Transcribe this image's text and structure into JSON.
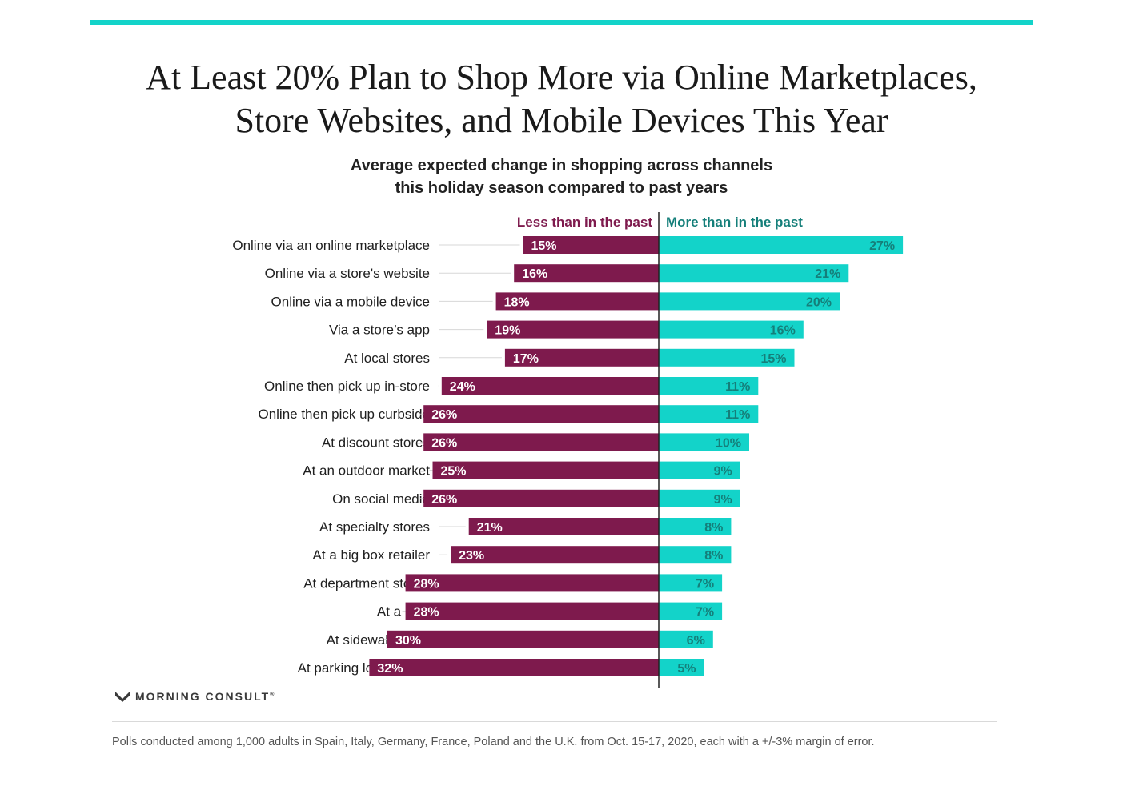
{
  "colors": {
    "accent_teal": "#13D3C9",
    "less_color": "#7E1A4D",
    "more_color": "#13D3C9",
    "more_label_color": "#157F7A",
    "less_label_color": "#ffffff",
    "axis_color": "#222222",
    "leader_color": "#d7d7d7"
  },
  "title": {
    "line1": "At Least 20% Plan to Shop More via Online Marketplaces,",
    "line2": "Store Websites, and Mobile Devices This Year"
  },
  "subtitle": {
    "line1": "Average expected change in shopping across channels",
    "line2": "this holiday season compared to past years"
  },
  "chart_data": {
    "type": "bar",
    "orientation": "horizontal-diverging",
    "title": "Average expected change in shopping across channels this holiday season compared to past years",
    "unit": "%",
    "legend": {
      "less": "Less than in the past",
      "more": "More than in the past"
    },
    "categories": [
      "Online via an online marketplace",
      "Online via a store's website",
      "Online via a mobile device",
      "Via a store’s app",
      "At local stores",
      "Online then pick up in-store",
      "Online then pick up curbside",
      "At discount stores",
      "At an outdoor market",
      "On social media",
      "At specialty stores",
      "At a big box retailer",
      "At department stores",
      "At a mall",
      "At sidewalk stalls",
      "At parking lot pop-ups"
    ],
    "series": [
      {
        "name": "Less than in the past",
        "values": [
          15,
          16,
          18,
          19,
          17,
          24,
          26,
          26,
          25,
          26,
          21,
          23,
          28,
          28,
          30,
          32
        ],
        "labels": [
          "15%",
          "16%",
          "18%",
          "19%",
          "17%",
          "24%",
          "26%",
          "26%",
          "25%",
          "26%",
          "21%",
          "23%",
          "28%",
          "28%",
          "30%",
          "32%"
        ]
      },
      {
        "name": "More than in the past",
        "values": [
          27,
          21,
          20,
          16,
          15,
          11,
          11,
          10,
          9,
          9,
          8,
          8,
          7,
          7,
          6,
          5
        ],
        "labels": [
          "27%",
          "21%",
          "20%",
          "16%",
          "15%",
          "11%",
          "11%",
          "10%",
          "9%",
          "9%",
          "8%",
          "8%",
          "7%",
          "7%",
          "6%",
          "5%"
        ]
      }
    ]
  },
  "branding": {
    "logo_text": "MORNING CONSULT",
    "logo_mark": "®",
    "logo_icon": "morning-consult-m-icon"
  },
  "footnote": "Polls conducted among 1,000 adults in Spain, Italy, Germany, France, Poland and the U.K. from Oct. 15-17, 2020, each with a +/-3% margin of error."
}
